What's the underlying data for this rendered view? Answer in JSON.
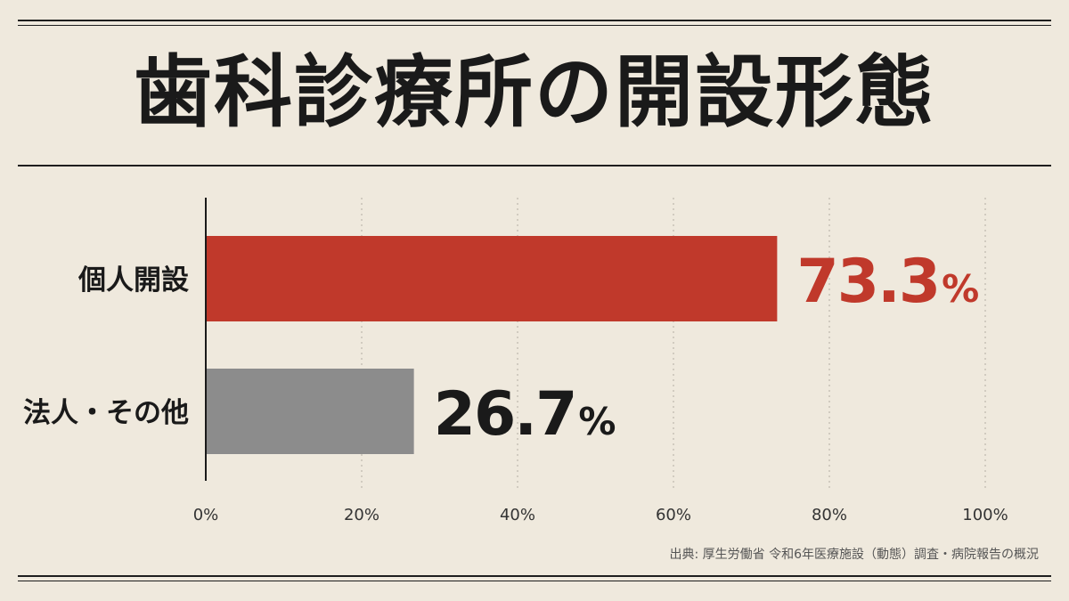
{
  "title": "歯科診療所の開設形態",
  "source": "出典: 厚生労働省 令和6年医療施設（動態）調査・病院報告の概況",
  "colors": {
    "background": "#efe9dd",
    "ink": "#1a1a1a",
    "accent": "#c0392b",
    "gray": "#8c8c8c",
    "grid": "#b3ada2"
  },
  "chart_data": {
    "type": "bar",
    "orientation": "horizontal",
    "categories": [
      "個人開設",
      "法人・その他"
    ],
    "values": [
      73.3,
      26.7
    ],
    "value_labels": [
      "73.3%",
      "26.7%"
    ],
    "bar_colors": [
      "#c0392b",
      "#8c8c8c"
    ],
    "xlim": [
      0,
      100
    ],
    "xticks": [
      0,
      20,
      40,
      60,
      80,
      100
    ],
    "xtick_labels": [
      "0%",
      "20%",
      "40%",
      "60%",
      "80%",
      "100%"
    ],
    "grid": "vertical dotted"
  }
}
